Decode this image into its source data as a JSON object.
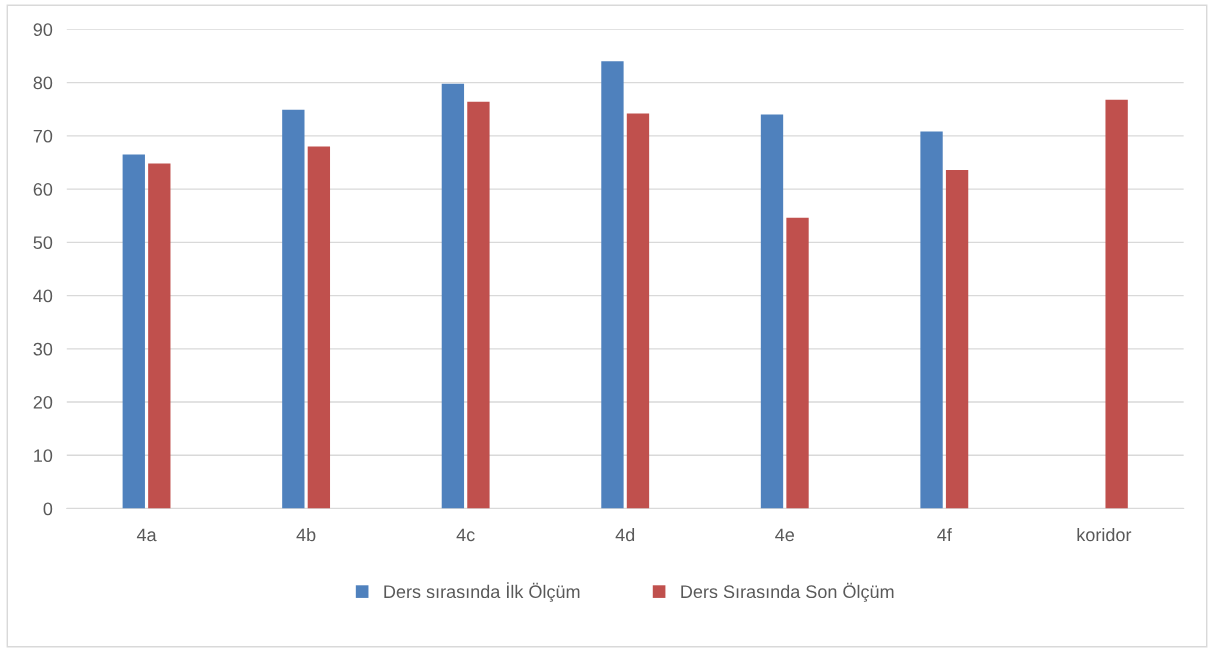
{
  "chart_data": {
    "type": "bar",
    "categories": [
      "4a",
      "4b",
      "4c",
      "4d",
      "4e",
      "4f",
      "koridor"
    ],
    "series": [
      {
        "name": "Ders sırasında İlk Ölçüm",
        "color": "#4f81bd",
        "values": [
          66.5,
          74.9,
          79.8,
          84.0,
          74.0,
          70.8,
          null
        ]
      },
      {
        "name": "Ders Sırasında Son Ölçüm",
        "color": "#c0504d",
        "values": [
          64.8,
          68.0,
          76.4,
          74.2,
          54.6,
          63.6,
          76.8
        ]
      }
    ],
    "ylim": [
      0,
      90
    ],
    "yticks": [
      0,
      10,
      20,
      30,
      40,
      50,
      60,
      70,
      80,
      90
    ],
    "grid": "y",
    "legend": "bottom"
  }
}
